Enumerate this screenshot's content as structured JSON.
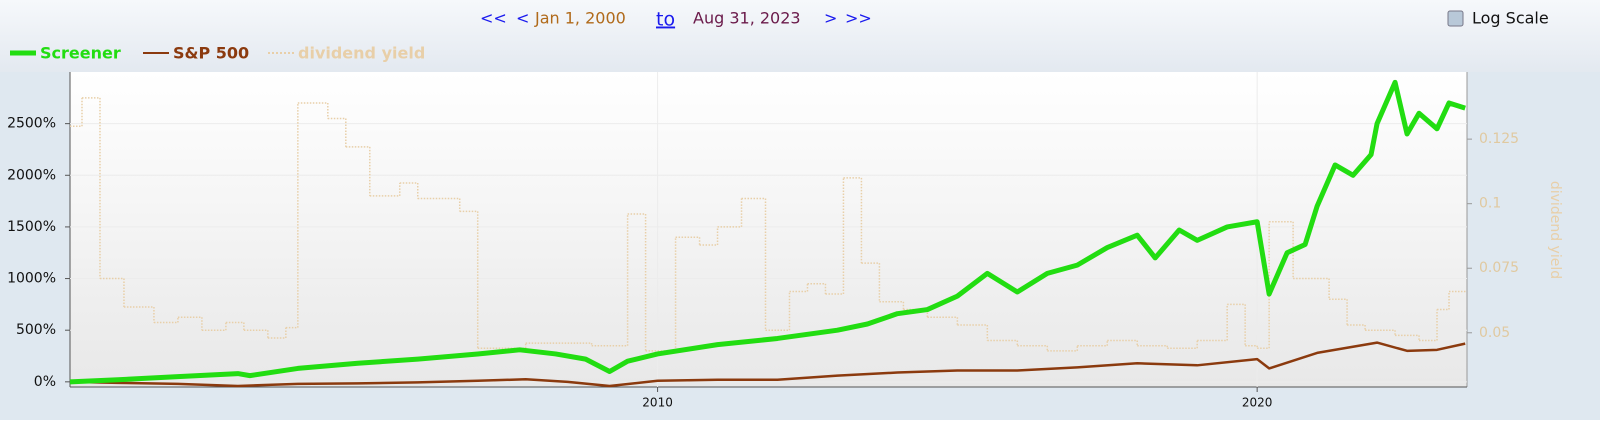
{
  "controls": {
    "prev_far": "<<",
    "prev": "<",
    "start_date": "Jan 1, 2000",
    "to": "to",
    "end_date": "Aug 31, 2023",
    "next": ">",
    "next_far": ">>",
    "log_scale_label": "Log Scale",
    "log_scale": false
  },
  "chart_data": {
    "type": "line",
    "xlim": [
      2000.2,
      2023.5
    ],
    "xticks": [
      2010,
      2020
    ],
    "ylim": [
      -50,
      3000
    ],
    "yticks": [
      {
        "value": 0,
        "label": "0%"
      },
      {
        "value": 500,
        "label": "500%"
      },
      {
        "value": 1000,
        "label": "1000%"
      },
      {
        "value": 1500,
        "label": "1500%"
      },
      {
        "value": 2000,
        "label": "2000%"
      },
      {
        "value": 2500,
        "label": "2500%"
      }
    ],
    "y2lim": [
      0.029,
      0.151
    ],
    "y2ticks": [
      0.05,
      0.075,
      0.1,
      0.125
    ],
    "y2label": "dividend yield",
    "grid": true,
    "series": [
      {
        "name": "Screener",
        "color": "#22dd11",
        "x": [
          2000.2,
          2001,
          2002,
          2003,
          2003.2,
          2004,
          2005,
          2006,
          2007,
          2007.7,
          2008.3,
          2008.8,
          2009.2,
          2009.5,
          2010,
          2011,
          2012,
          2013,
          2013.5,
          2014,
          2014.5,
          2015,
          2015.5,
          2016,
          2016.5,
          2017,
          2017.5,
          2018,
          2018.3,
          2018.7,
          2019,
          2019.5,
          2020,
          2020.2,
          2020.5,
          2020.8,
          2021,
          2021.3,
          2021.6,
          2021.9,
          2022,
          2022.3,
          2022.5,
          2022.7,
          2023,
          2023.2,
          2023.47
        ],
        "values": [
          0,
          20,
          50,
          80,
          60,
          130,
          180,
          220,
          270,
          310,
          270,
          220,
          100,
          200,
          270,
          360,
          420,
          500,
          560,
          660,
          700,
          830,
          1050,
          870,
          1050,
          1130,
          1300,
          1420,
          1200,
          1470,
          1370,
          1500,
          1550,
          850,
          1250,
          1330,
          1700,
          2100,
          2000,
          2200,
          2500,
          2900,
          2400,
          2600,
          2450,
          2700,
          2650
        ]
      },
      {
        "name": "S&P 500",
        "color": "#8b3a0e",
        "x": [
          2000.2,
          2001,
          2002,
          2003,
          2004,
          2005,
          2006,
          2007,
          2007.8,
          2008.5,
          2009.2,
          2010,
          2011,
          2012,
          2013,
          2014,
          2015,
          2016,
          2017,
          2018,
          2019,
          2020,
          2020.2,
          2021,
          2022,
          2022.5,
          2023,
          2023.47
        ],
        "values": [
          0,
          -10,
          -20,
          -40,
          -20,
          -15,
          -5,
          10,
          25,
          0,
          -40,
          10,
          20,
          20,
          60,
          90,
          110,
          110,
          140,
          180,
          160,
          220,
          130,
          280,
          380,
          300,
          310,
          370
        ]
      },
      {
        "name": "dividend yield",
        "color": "#e8cfa8",
        "axis": "y2",
        "step": true,
        "x": [
          2000.2,
          2000.4,
          2000.7,
          2001.1,
          2001.6,
          2002,
          2002.4,
          2002.8,
          2003.1,
          2003.5,
          2003.8,
          2004,
          2004.5,
          2004.8,
          2005.2,
          2005.7,
          2006,
          2006.7,
          2007,
          2007.8,
          2008.9,
          2009.5,
          2009.8,
          2010.3,
          2010.7,
          2011,
          2011.4,
          2011.8,
          2012.2,
          2012.5,
          2012.8,
          2013.1,
          2013.4,
          2013.7,
          2014.1,
          2014.5,
          2015,
          2015.5,
          2016,
          2016.5,
          2017,
          2017.5,
          2018,
          2018.5,
          2019,
          2019.5,
          2019.8,
          2020,
          2020.2,
          2020.6,
          2021.2,
          2021.5,
          2021.8,
          2022.3,
          2022.7,
          2023,
          2023.2
        ],
        "values": [
          0.13,
          0.141,
          0.071,
          0.06,
          0.054,
          0.056,
          0.051,
          0.054,
          0.051,
          0.048,
          0.052,
          0.139,
          0.133,
          0.122,
          0.103,
          0.108,
          0.102,
          0.097,
          0.044,
          0.046,
          0.045,
          0.096,
          0.043,
          0.087,
          0.084,
          0.091,
          0.102,
          0.051,
          0.066,
          0.069,
          0.065,
          0.11,
          0.077,
          0.062,
          0.059,
          0.056,
          0.053,
          0.047,
          0.045,
          0.043,
          0.045,
          0.047,
          0.045,
          0.044,
          0.047,
          0.061,
          0.045,
          0.044,
          0.093,
          0.071,
          0.063,
          0.053,
          0.051,
          0.049,
          0.047,
          0.059,
          0.066
        ]
      }
    ]
  }
}
